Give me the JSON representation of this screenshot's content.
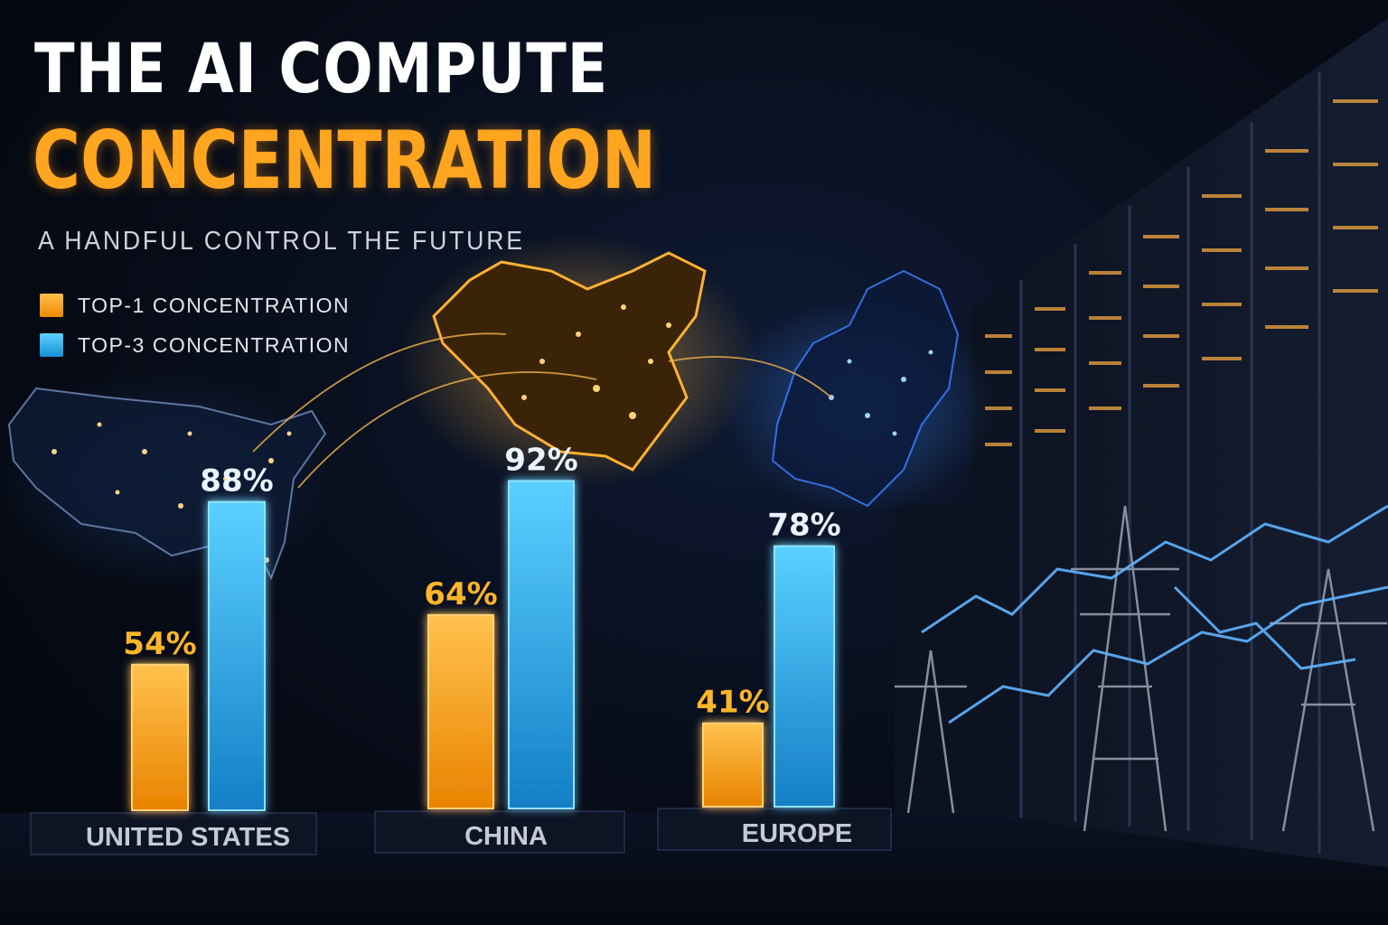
{
  "header": {
    "title_line1": "THE AI COMPUTE",
    "title_line2": "CONCENTRATION",
    "subtitle": "A HANDFUL CONTROL THE FUTURE"
  },
  "legend": {
    "items": [
      {
        "label": "TOP-1 CONCENTRATION",
        "color": "#ffa51f"
      },
      {
        "label": "TOP-3 CONCENTRATION",
        "color": "#2fb6f0"
      }
    ]
  },
  "chart_data": {
    "type": "bar",
    "title": "THE AI COMPUTE CONCENTRATION",
    "subtitle": "A HANDFUL CONTROL THE FUTURE",
    "categories": [
      "UNITED STATES",
      "CHINA",
      "EUROPE"
    ],
    "series": [
      {
        "name": "TOP-1 CONCENTRATION",
        "values": [
          54,
          64,
          41
        ],
        "labels": [
          "54%",
          "64%",
          "41%"
        ],
        "color": "#ffa51f"
      },
      {
        "name": "TOP-3 CONCENTRATION",
        "values": [
          88,
          92,
          78
        ],
        "labels": [
          "88%",
          "92%",
          "78%"
        ],
        "color": "#2fb6f0"
      }
    ],
    "grid": false,
    "legend_position": "top-left"
  }
}
